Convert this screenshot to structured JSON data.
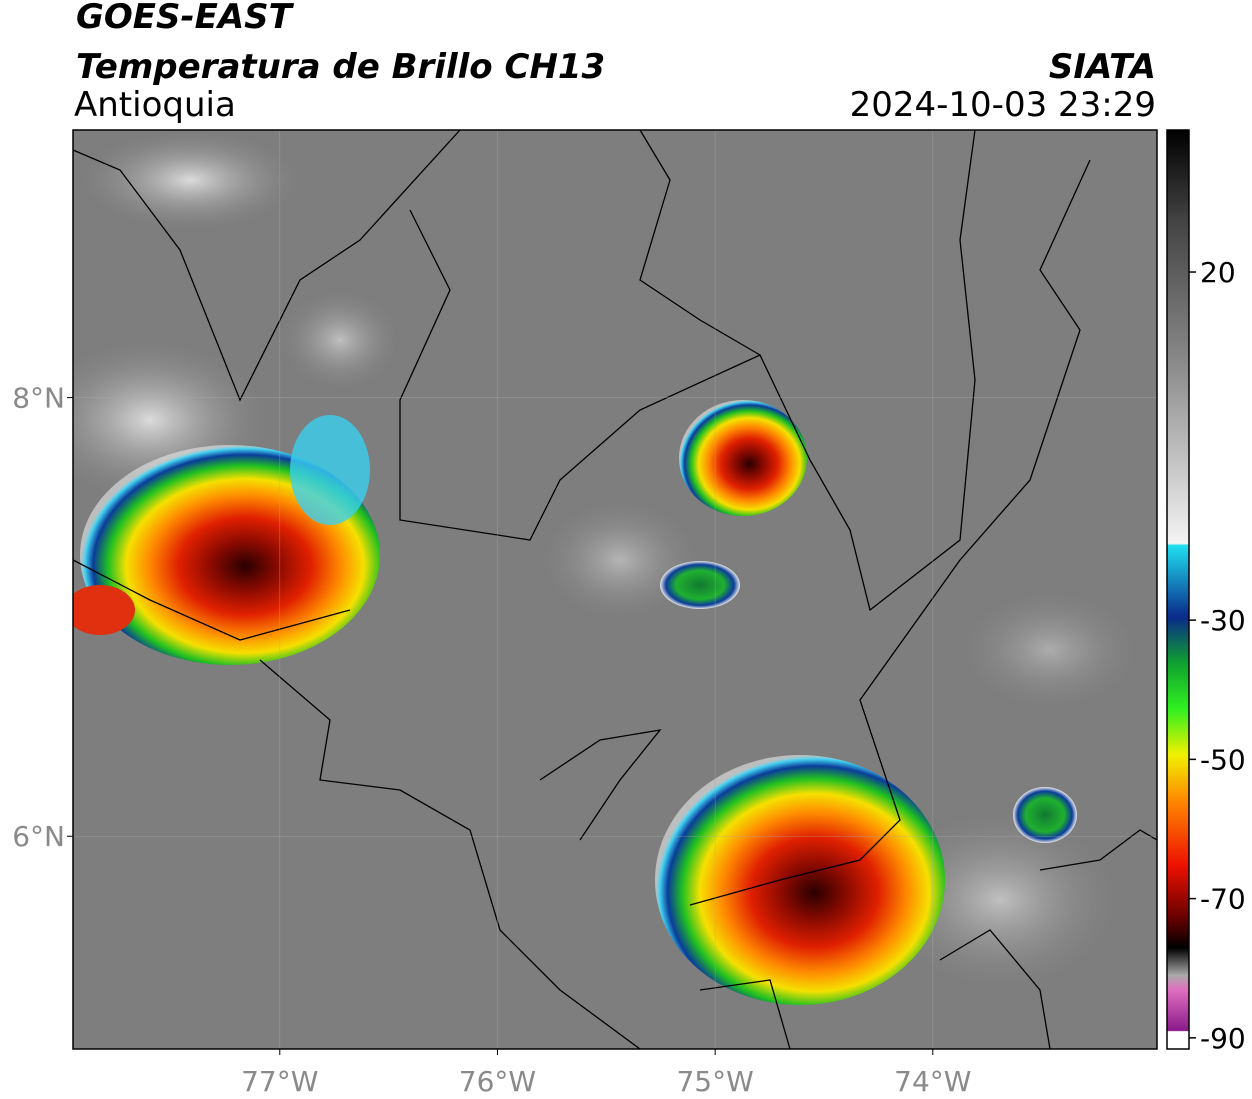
{
  "header": {
    "title": "GOES-EAST",
    "subtitle": "Temperatura de Brillo CH13",
    "region": "Antioquia",
    "source": "SIATA",
    "datetime": "2024-10-03 23:29"
  },
  "map": {
    "xlim": [
      -77.95,
      -72.97
    ],
    "ylim": [
      5.03,
      9.22
    ],
    "xticks": [
      {
        "value": -77,
        "label": "77°W"
      },
      {
        "value": -76,
        "label": "76°W"
      },
      {
        "value": -75,
        "label": "75°W"
      },
      {
        "value": -74,
        "label": "74°W"
      }
    ],
    "yticks": [
      {
        "value": 6,
        "label": "6°N"
      },
      {
        "value": 8,
        "label": "8°N"
      }
    ],
    "grid": true
  },
  "colorbar": {
    "lim": [
      -91.6,
      40.4
    ],
    "ticks": [
      20,
      -30,
      -50,
      -70,
      -90
    ]
  }
}
